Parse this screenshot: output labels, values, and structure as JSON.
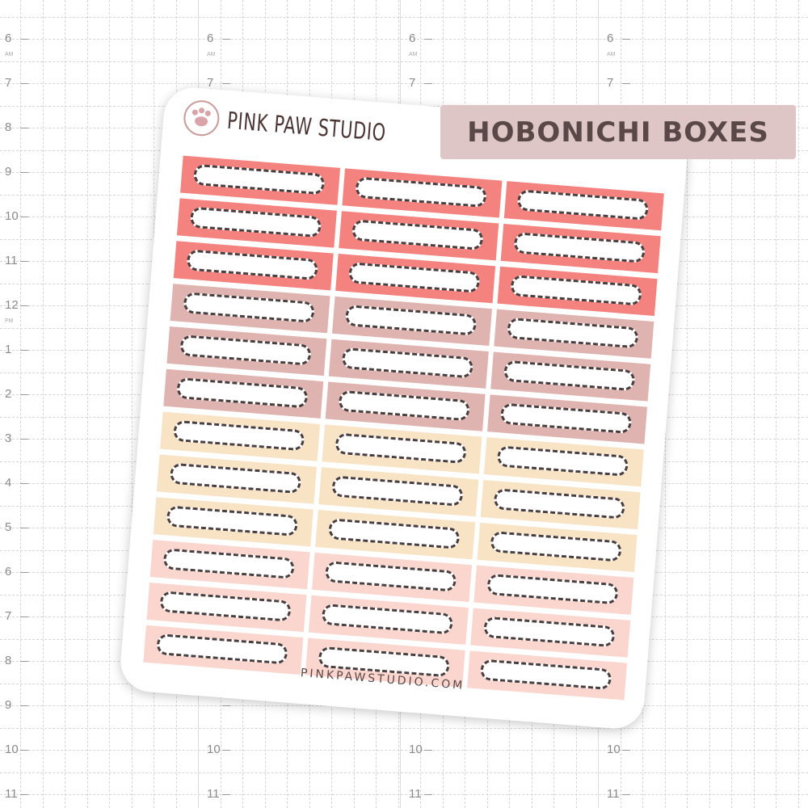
{
  "planner": {
    "hours": [
      "6",
      "7",
      "8",
      "9",
      "10",
      "11",
      "12",
      "1",
      "2",
      "3",
      "4",
      "5",
      "6",
      "7",
      "8",
      "9",
      "10",
      "11"
    ],
    "am_label": "AM",
    "pm_label": "PM"
  },
  "sheet": {
    "brand": "PINK PAW STUDIO",
    "website": "PINKPAWSTUDIO.COM",
    "columns": 3,
    "row_colors": [
      "#f4827e",
      "#f4827e",
      "#f4827e",
      "#dfb3b0",
      "#dfb3b0",
      "#dfb3b0",
      "#f8e3c4",
      "#f8e3c4",
      "#f8e3c4",
      "#fbd6cf",
      "#fbd6cf",
      "#fbd6cf"
    ]
  },
  "title_badge": {
    "text": "HOBONICHI BOXES",
    "color": "#dec6c6"
  }
}
